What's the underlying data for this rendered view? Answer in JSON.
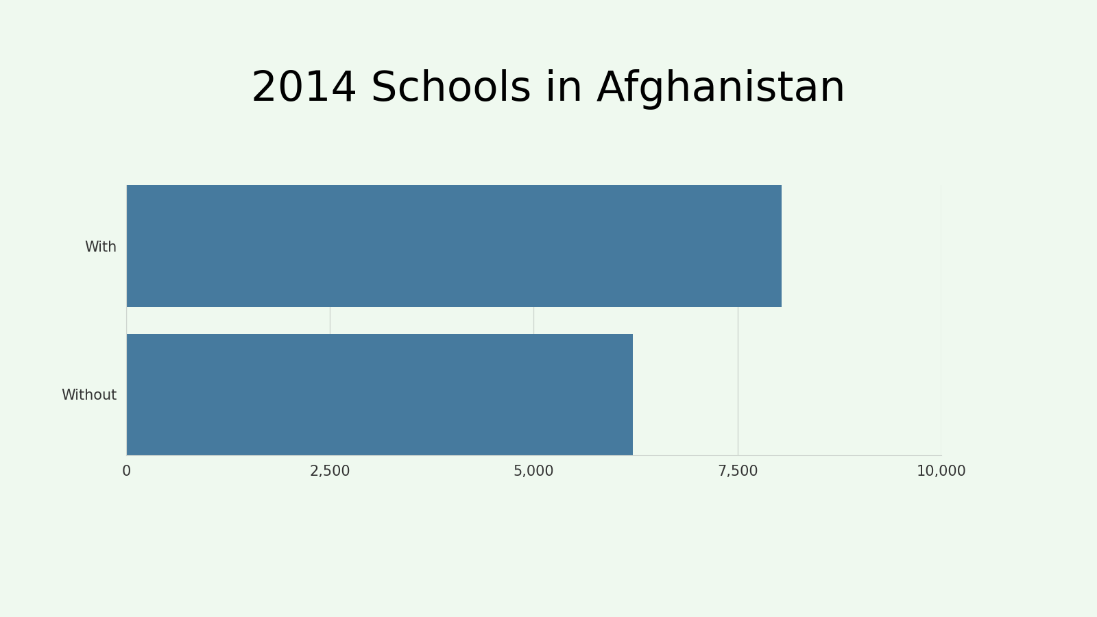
{
  "chart_data": {
    "type": "bar",
    "orientation": "horizontal",
    "title": "2014 Schools in Afghanistan",
    "categories": [
      "With",
      "Without"
    ],
    "values": [
      8040,
      6220
    ],
    "color": "#467a9e",
    "xlim": [
      0,
      10000
    ],
    "xticks": [
      0,
      {
        "value": 2500,
        "label": "2,500"
      },
      {
        "value": 5000,
        "label": "5,000"
      },
      {
        "value": 7500,
        "label": "7,500"
      },
      {
        "value": 10000,
        "label": "10,000"
      }
    ],
    "grid": true
  }
}
